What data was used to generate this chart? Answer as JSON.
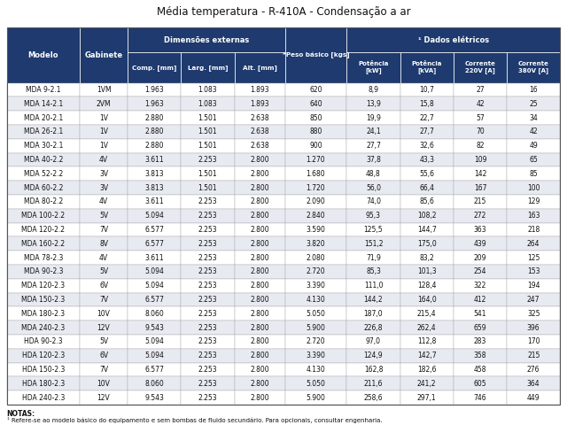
{
  "title": "Média temperatura - R-410A - Condensação a ar",
  "header_bg": "#1e3a6e",
  "header_text": "#ffffff",
  "row_bg_odd": "#ffffff",
  "row_bg_even": "#e8eaf2",
  "border_color": "#888888",
  "cell_border_color": "#aaaaaa",
  "rows": [
    [
      "MDA 9-2.1",
      "1VM",
      "1.963",
      "1.083",
      "1.893",
      "620",
      "8,9",
      "10,7",
      "27",
      "16"
    ],
    [
      "MDA 14-2.1",
      "2VM",
      "1.963",
      "1.083",
      "1.893",
      "640",
      "13,9",
      "15,8",
      "42",
      "25"
    ],
    [
      "MDA 20-2.1",
      "1V",
      "2.880",
      "1.501",
      "2.638",
      "850",
      "19,9",
      "22,7",
      "57",
      "34"
    ],
    [
      "MDA 26-2.1",
      "1V",
      "2.880",
      "1.501",
      "2.638",
      "880",
      "24,1",
      "27,7",
      "70",
      "42"
    ],
    [
      "MDA 30-2.1",
      "1V",
      "2.880",
      "1.501",
      "2.638",
      "900",
      "27,7",
      "32,6",
      "82",
      "49"
    ],
    [
      "MDA 40-2.2",
      "4V",
      "3.611",
      "2.253",
      "2.800",
      "1.270",
      "37,8",
      "43,3",
      "109",
      "65"
    ],
    [
      "MDA 52-2.2",
      "3V",
      "3.813",
      "1.501",
      "2.800",
      "1.680",
      "48,8",
      "55,6",
      "142",
      "85"
    ],
    [
      "MDA 60-2.2",
      "3V",
      "3.813",
      "1.501",
      "2.800",
      "1.720",
      "56,0",
      "66,4",
      "167",
      "100"
    ],
    [
      "MDA 80-2.2",
      "4V",
      "3.611",
      "2.253",
      "2.800",
      "2.090",
      "74,0",
      "85,6",
      "215",
      "129"
    ],
    [
      "MDA 100-2.2",
      "5V",
      "5.094",
      "2.253",
      "2.800",
      "2.840",
      "95,3",
      "108,2",
      "272",
      "163"
    ],
    [
      "MDA 120-2.2",
      "7V",
      "6.577",
      "2.253",
      "2.800",
      "3.590",
      "125,5",
      "144,7",
      "363",
      "218"
    ],
    [
      "MDA 160-2.2",
      "8V",
      "6.577",
      "2.253",
      "2.800",
      "3.820",
      "151,2",
      "175,0",
      "439",
      "264"
    ],
    [
      "MDA 78-2.3",
      "4V",
      "3.611",
      "2.253",
      "2.800",
      "2.080",
      "71,9",
      "83,2",
      "209",
      "125"
    ],
    [
      "MDA 90-2.3",
      "5V",
      "5.094",
      "2.253",
      "2.800",
      "2.720",
      "85,3",
      "101,3",
      "254",
      "153"
    ],
    [
      "MDA 120-2.3",
      "6V",
      "5.094",
      "2.253",
      "2.800",
      "3.390",
      "111,0",
      "128,4",
      "322",
      "194"
    ],
    [
      "MDA 150-2.3",
      "7V",
      "6.577",
      "2.253",
      "2.800",
      "4.130",
      "144,2",
      "164,0",
      "412",
      "247"
    ],
    [
      "MDA 180-2.3",
      "10V",
      "8.060",
      "2.253",
      "2.800",
      "5.050",
      "187,0",
      "215,4",
      "541",
      "325"
    ],
    [
      "MDA 240-2.3",
      "12V",
      "9.543",
      "2.253",
      "2.800",
      "5.900",
      "226,8",
      "262,4",
      "659",
      "396"
    ],
    [
      "HDA 90-2.3",
      "5V",
      "5.094",
      "2.253",
      "2.800",
      "2.720",
      "97,0",
      "112,8",
      "283",
      "170"
    ],
    [
      "HDA 120-2.3",
      "6V",
      "5.094",
      "2.253",
      "2.800",
      "3.390",
      "124,9",
      "142,7",
      "358",
      "215"
    ],
    [
      "HDA 150-2.3",
      "7V",
      "6.577",
      "2.253",
      "2.800",
      "4.130",
      "162,8",
      "182,6",
      "458",
      "276"
    ],
    [
      "HDA 180-2.3",
      "10V",
      "8.060",
      "2.253",
      "2.800",
      "5.050",
      "211,6",
      "241,2",
      "605",
      "364"
    ],
    [
      "HDA 240-2.3",
      "12V",
      "9.543",
      "2.253",
      "2.800",
      "5.900",
      "258,6",
      "297,1",
      "746",
      "449"
    ]
  ],
  "note_label": "NOTAS:",
  "note_text": "¹ Refere-se ao modelo básico do equipamento e sem bombas de fluido secundário. Para opcionais, consultar engenharia.",
  "col_weights": [
    1.3,
    0.85,
    0.95,
    0.95,
    0.9,
    1.1,
    0.95,
    0.95,
    0.95,
    0.95
  ]
}
